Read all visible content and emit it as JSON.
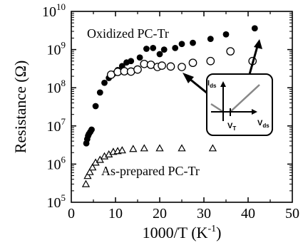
{
  "chart_data": {
    "type": "scatter",
    "xlabel": "1000/T (K",
    "xlabel_sup": "-1",
    "xlabel_close": ")",
    "ylabel": "Resistance (Ω)",
    "xlim": [
      0,
      50
    ],
    "ylim_log10": [
      5,
      10
    ],
    "y_scale": "log",
    "x_ticks": [
      "0",
      "10",
      "20",
      "30",
      "40",
      "50"
    ],
    "y_tick_exponents": [
      "5",
      "6",
      "7",
      "8",
      "9",
      "10"
    ],
    "y_tick_base": "10",
    "series": [
      {
        "name": "Oxidized PC-Tr",
        "marker": "filled-circle",
        "points": [
          [
            3.4,
            3500000.0
          ],
          [
            3.6,
            4500000.0
          ],
          [
            3.8,
            5500000.0
          ],
          [
            4.0,
            6200000.0
          ],
          [
            4.3,
            7000000.0
          ],
          [
            4.6,
            8000000.0
          ],
          [
            5.5,
            33000000.0
          ],
          [
            6.5,
            75000000.0
          ],
          [
            7.5,
            135000000.0
          ],
          [
            8.5,
            180000000.0
          ],
          [
            9.5,
            230000000.0
          ],
          [
            10.5,
            290000000.0
          ],
          [
            11.5,
            370000000.0
          ],
          [
            12.5,
            460000000.0
          ],
          [
            13.5,
            500000000.0
          ],
          [
            15.5,
            620000000.0
          ],
          [
            17.0,
            1050000000.0
          ],
          [
            18.5,
            1100000000.0
          ],
          [
            20.0,
            760000000.0
          ],
          [
            21.0,
            1000000000.0
          ],
          [
            23.5,
            1100000000.0
          ],
          [
            25.0,
            1400000000.0
          ],
          [
            27.5,
            1500000000.0
          ],
          [
            31.5,
            1900000000.0
          ],
          [
            35.0,
            2500000000.0
          ],
          [
            41.5,
            3600000000.0
          ]
        ]
      },
      {
        "name": "",
        "marker": "open-circle",
        "points": [
          [
            9.0,
            220000000.0
          ],
          [
            10.5,
            260000000.0
          ],
          [
            12.0,
            270000000.0
          ],
          [
            13.5,
            265000000.0
          ],
          [
            15.0,
            300000000.0
          ],
          [
            16.5,
            420000000.0
          ],
          [
            18.0,
            400000000.0
          ],
          [
            19.5,
            350000000.0
          ],
          [
            20.5,
            380000000.0
          ],
          [
            22.5,
            360000000.0
          ],
          [
            25.0,
            350000000.0
          ],
          [
            27.5,
            450000000.0
          ],
          [
            31.5,
            500000000.0
          ],
          [
            36.0,
            900000000.0
          ],
          [
            41.0,
            500000000.0
          ]
        ]
      },
      {
        "name": "As-prepared PC-Tr",
        "marker": "open-triangle",
        "points": [
          [
            3.3,
            300000.0
          ],
          [
            3.7,
            490000.0
          ],
          [
            4.2,
            620000.0
          ],
          [
            4.8,
            820000.0
          ],
          [
            5.5,
            1100000.0
          ],
          [
            6.5,
            1300000.0
          ],
          [
            7.5,
            1600000.0
          ],
          [
            8.5,
            1800000.0
          ],
          [
            9.5,
            2100000.0
          ],
          [
            10.5,
            2200000.0
          ],
          [
            11.5,
            2300000.0
          ],
          [
            14.0,
            2500000.0
          ],
          [
            16.5,
            2600000.0
          ],
          [
            20.0,
            2600000.0
          ],
          [
            25.0,
            2600000.0
          ],
          [
            32.0,
            2600000.0
          ]
        ]
      }
    ],
    "inset": {
      "ylabel": "I",
      "ylabel_sub": "ds",
      "xlabel": "V",
      "xlabel_sub": "ds",
      "threshold_label": "V",
      "threshold_sub": "T"
    },
    "colors": {
      "ink": "#000000",
      "inset_curve": "#888888",
      "background": "#ffffff"
    }
  }
}
